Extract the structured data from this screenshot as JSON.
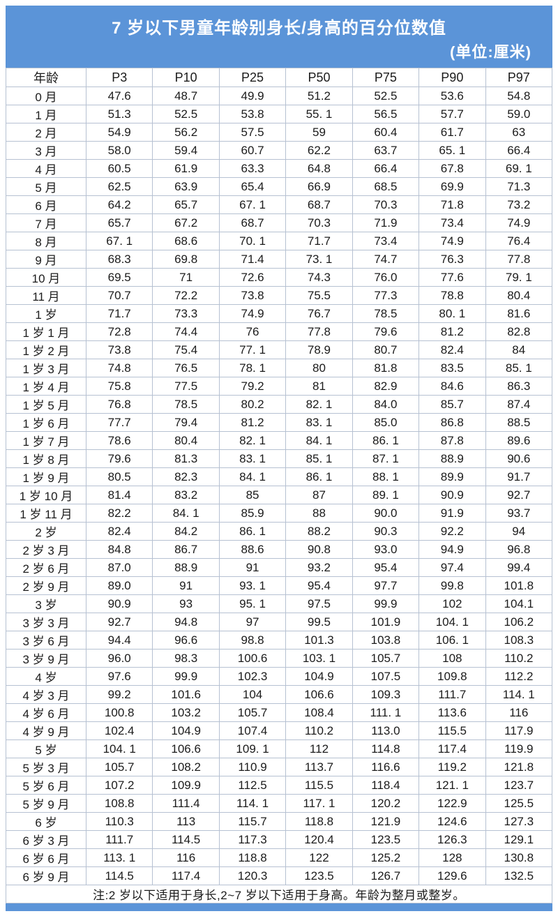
{
  "header": {
    "title": "7 岁以下男童年龄别身长/身高的百分位数值",
    "subtitle": "(单位:厘米)"
  },
  "table": {
    "columns": [
      "年龄",
      "P3",
      "P10",
      "P25",
      "P50",
      "P75",
      "P90",
      "P97"
    ],
    "rows": [
      {
        "age": "0 月",
        "values": [
          "47.6",
          "48.7",
          "49.9",
          "51.2",
          "52.5",
          "53.6",
          "54.8"
        ]
      },
      {
        "age": "1 月",
        "values": [
          "51.3",
          "52.5",
          "53.8",
          "55. 1",
          "56.5",
          "57.7",
          "59.0"
        ]
      },
      {
        "age": "2 月",
        "values": [
          "54.9",
          "56.2",
          "57.5",
          "59",
          "60.4",
          "61.7",
          "63"
        ]
      },
      {
        "age": "3 月",
        "values": [
          "58.0",
          "59.4",
          "60.7",
          "62.2",
          "63.7",
          "65. 1",
          "66.4"
        ]
      },
      {
        "age": "4 月",
        "values": [
          "60.5",
          "61.9",
          "63.3",
          "64.8",
          "66.4",
          "67.8",
          "69. 1"
        ]
      },
      {
        "age": "5 月",
        "values": [
          "62.5",
          "63.9",
          "65.4",
          "66.9",
          "68.5",
          "69.9",
          "71.3"
        ]
      },
      {
        "age": "6 月",
        "values": [
          "64.2",
          "65.7",
          "67. 1",
          "68.7",
          "70.3",
          "71.8",
          "73.2"
        ]
      },
      {
        "age": "7 月",
        "values": [
          "65.7",
          "67.2",
          "68.7",
          "70.3",
          "71.9",
          "73.4",
          "74.9"
        ]
      },
      {
        "age": "8 月",
        "values": [
          "67. 1",
          "68.6",
          "70. 1",
          "71.7",
          "73.4",
          "74.9",
          "76.4"
        ]
      },
      {
        "age": "9 月",
        "values": [
          "68.3",
          "69.8",
          "71.4",
          "73. 1",
          "74.7",
          "76.3",
          "77.8"
        ]
      },
      {
        "age": "10 月",
        "values": [
          "69.5",
          "71",
          "72.6",
          "74.3",
          "76.0",
          "77.6",
          "79. 1"
        ]
      },
      {
        "age": "11 月",
        "values": [
          "70.7",
          "72.2",
          "73.8",
          "75.5",
          "77.3",
          "78.8",
          "80.4"
        ]
      },
      {
        "age": "1 岁",
        "values": [
          "71.7",
          "73.3",
          "74.9",
          "76.7",
          "78.5",
          "80. 1",
          "81.6"
        ]
      },
      {
        "age": "1 岁 1 月",
        "values": [
          "72.8",
          "74.4",
          "76",
          "77.8",
          "79.6",
          "81.2",
          "82.8"
        ]
      },
      {
        "age": "1 岁 2 月",
        "values": [
          "73.8",
          "75.4",
          "77. 1",
          "78.9",
          "80.7",
          "82.4",
          "84"
        ]
      },
      {
        "age": "1 岁 3 月",
        "values": [
          "74.8",
          "76.5",
          "78. 1",
          "80",
          "81.8",
          "83.5",
          "85. 1"
        ]
      },
      {
        "age": "1 岁 4 月",
        "values": [
          "75.8",
          "77.5",
          "79.2",
          "81",
          "82.9",
          "84.6",
          "86.3"
        ]
      },
      {
        "age": "1 岁 5 月",
        "values": [
          "76.8",
          "78.5",
          "80.2",
          "82. 1",
          "84.0",
          "85.7",
          "87.4"
        ]
      },
      {
        "age": "1 岁 6 月",
        "values": [
          "77.7",
          "79.4",
          "81.2",
          "83. 1",
          "85.0",
          "86.8",
          "88.5"
        ]
      },
      {
        "age": "1 岁 7 月",
        "values": [
          "78.6",
          "80.4",
          "82. 1",
          "84. 1",
          "86. 1",
          "87.8",
          "89.6"
        ]
      },
      {
        "age": "1 岁 8 月",
        "values": [
          "79.6",
          "81.3",
          "83. 1",
          "85. 1",
          "87. 1",
          "88.9",
          "90.6"
        ]
      },
      {
        "age": "1 岁 9 月",
        "values": [
          "80.5",
          "82.3",
          "84. 1",
          "86. 1",
          "88. 1",
          "89.9",
          "91.7"
        ]
      },
      {
        "age": "1 岁 10 月",
        "values": [
          "81.4",
          "83.2",
          "85",
          "87",
          "89. 1",
          "90.9",
          "92.7"
        ]
      },
      {
        "age": "1 岁 11 月",
        "values": [
          "82.2",
          "84. 1",
          "85.9",
          "88",
          "90.0",
          "91.9",
          "93.7"
        ]
      },
      {
        "age": "2 岁",
        "values": [
          "82.4",
          "84.2",
          "86. 1",
          "88.2",
          "90.3",
          "92.2",
          "94"
        ]
      },
      {
        "age": "2 岁 3 月",
        "values": [
          "84.8",
          "86.7",
          "88.6",
          "90.8",
          "93.0",
          "94.9",
          "96.8"
        ]
      },
      {
        "age": "2 岁 6 月",
        "values": [
          "87.0",
          "88.9",
          "91",
          "93.2",
          "95.4",
          "97.4",
          "99.4"
        ]
      },
      {
        "age": "2 岁 9 月",
        "values": [
          "89.0",
          "91",
          "93. 1",
          "95.4",
          "97.7",
          "99.8",
          "101.8"
        ]
      },
      {
        "age": "3 岁",
        "values": [
          "90.9",
          "93",
          "95. 1",
          "97.5",
          "99.9",
          "102",
          "104.1"
        ]
      },
      {
        "age": "3 岁 3 月",
        "values": [
          "92.7",
          "94.8",
          "97",
          "99.5",
          "101.9",
          "104. 1",
          "106.2"
        ]
      },
      {
        "age": "3 岁 6 月",
        "values": [
          "94.4",
          "96.6",
          "98.8",
          "101.3",
          "103.8",
          "106. 1",
          "108.3"
        ]
      },
      {
        "age": "3 岁 9 月",
        "values": [
          "96.0",
          "98.3",
          "100.6",
          "103. 1",
          "105.7",
          "108",
          "110.2"
        ]
      },
      {
        "age": "4 岁",
        "values": [
          "97.6",
          "99.9",
          "102.3",
          "104.9",
          "107.5",
          "109.8",
          "112.2"
        ]
      },
      {
        "age": "4 岁 3 月",
        "values": [
          "99.2",
          "101.6",
          "104",
          "106.6",
          "109.3",
          "111.7",
          "114. 1"
        ]
      },
      {
        "age": "4 岁 6 月",
        "values": [
          "100.8",
          "103.2",
          "105.7",
          "108.4",
          "111. 1",
          "113.6",
          "116"
        ]
      },
      {
        "age": "4 岁 9 月",
        "values": [
          "102.4",
          "104.9",
          "107.4",
          "110.2",
          "113.0",
          "115.5",
          "117.9"
        ]
      },
      {
        "age": "5 岁",
        "values": [
          "104. 1",
          "106.6",
          "109. 1",
          "112",
          "114.8",
          "117.4",
          "119.9"
        ]
      },
      {
        "age": "5 岁 3 月",
        "values": [
          "105.7",
          "108.2",
          "110.9",
          "113.7",
          "116.6",
          "119.2",
          "121.8"
        ]
      },
      {
        "age": "5 岁 6 月",
        "values": [
          "107.2",
          "109.9",
          "112.5",
          "115.5",
          "118.4",
          "121. 1",
          "123.7"
        ]
      },
      {
        "age": "5 岁 9 月",
        "values": [
          "108.8",
          "111.4",
          "114. 1",
          "117. 1",
          "120.2",
          "122.9",
          "125.5"
        ]
      },
      {
        "age": "6 岁",
        "values": [
          "110.3",
          "113",
          "115.7",
          "118.8",
          "121.9",
          "124.6",
          "127.3"
        ]
      },
      {
        "age": "6 岁 3 月",
        "values": [
          "111.7",
          "114.5",
          "117.3",
          "120.4",
          "123.5",
          "126.3",
          "129.1"
        ]
      },
      {
        "age": "6 岁 6 月",
        "values": [
          "113. 1",
          "116",
          "118.8",
          "122",
          "125.2",
          "128",
          "130.8"
        ]
      },
      {
        "age": "6 岁 9 月",
        "values": [
          "114.5",
          "117.4",
          "120.3",
          "123.5",
          "126.7",
          "129.6",
          "132.5"
        ]
      }
    ]
  },
  "note": "注:2 岁以下适用于身长,2~7 岁以下适用于身高。年龄为整月或整岁。",
  "colors": {
    "header_bg": "#5b94d8",
    "table_border": "#b6c1d2",
    "title_text": "#ffffff",
    "body_text": "#1b1b1b"
  }
}
